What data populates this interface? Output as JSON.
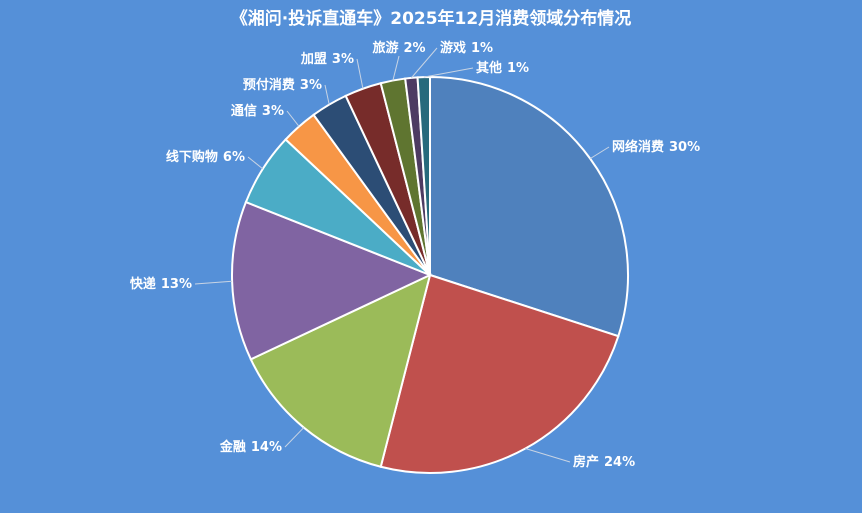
{
  "chart_data": {
    "type": "pie",
    "title": "《湘问·投诉直通车》2025年12月消费领域分布情况",
    "categories": [
      "网络消费",
      "房产",
      "金融",
      "快递",
      "线下购物",
      "通信",
      "预付消费",
      "加盟",
      "旅游",
      "游戏",
      "其他"
    ],
    "values": [
      30,
      24,
      14,
      13,
      6,
      3,
      3,
      3,
      2,
      1,
      1
    ],
    "value_labels": [
      "30%",
      "24%",
      "14%",
      "13%",
      "6%",
      "3%",
      "3%",
      "3%",
      "2%",
      "1%",
      "1%"
    ],
    "colors": [
      "#4f81bd",
      "#c0504d",
      "#9bbb59",
      "#8064a2",
      "#4bacc6",
      "#f79646",
      "#2c4d75",
      "#772c2a",
      "#5f7530",
      "#4d3b62",
      "#276a7c"
    ]
  }
}
